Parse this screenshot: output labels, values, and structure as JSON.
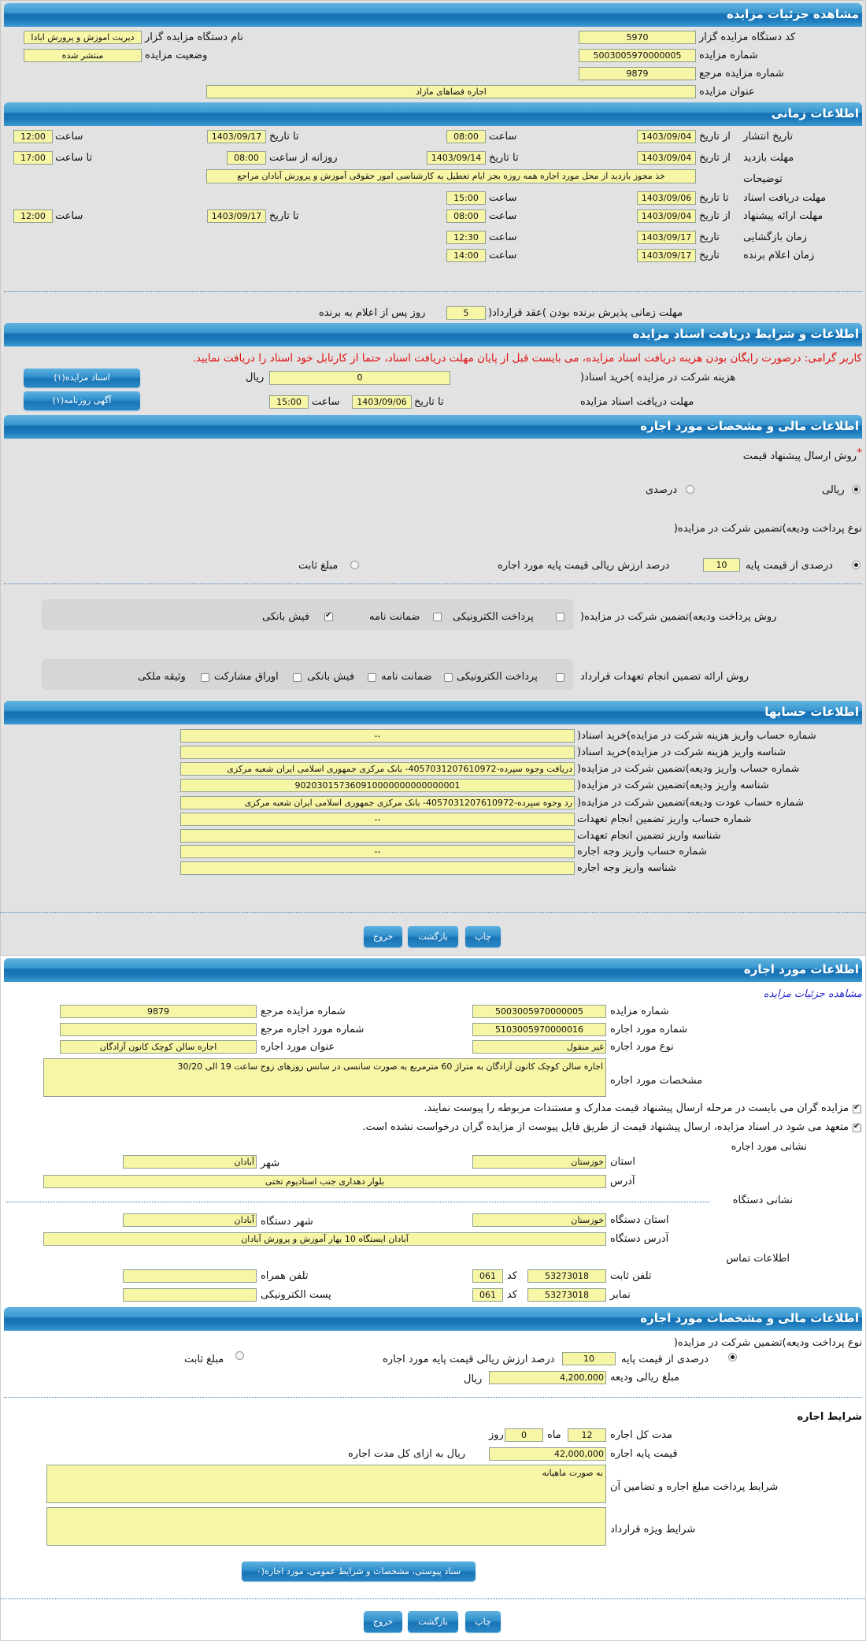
{
  "colors": {
    "header": "#1a78ba",
    "field": "#f7f5a6",
    "notice": "#e01010",
    "link": "#2a2ad0",
    "background": "#e2e2e2"
  },
  "page_title": "مشاهده جزئیات مزایده",
  "auction": {
    "org_code_label": "کد دستگاه مزایده گزار",
    "org_code": "5970",
    "org_name_label": "نام دستگاه مزایده گزار",
    "org_name": "دیریت اموزش و پرورش ابادا",
    "number_label": "شماره مزایده",
    "number": "5003005970000005",
    "status_label": "وضعیت مزایده",
    "status": "منتشر شده",
    "ref_label": "شماره مزایده مرجع",
    "ref": "9879",
    "title_label": "عنوان مزایده",
    "title": "اجاره فضاهای مازاد"
  },
  "timing": {
    "title": "اطلاعات زمانی",
    "from_date": "از تاریخ",
    "to_date": "تا تاریخ",
    "time": "ساعت",
    "to_time": "تا ساعت",
    "daily_from": "روزانه از ساعت",
    "date": "تاریخ",
    "publish": {
      "label": "تاریخ انتشار",
      "from_date": "1403/09/04",
      "from_time": "08:00",
      "to_date": "1403/09/17",
      "to_time": "12:00"
    },
    "visit": {
      "label": "مهلت بازدید",
      "from_date": "1403/09/04",
      "to_date": "1403/09/14",
      "from_time": "08:00",
      "to_time": "17:00"
    },
    "notes_label": "توضیحات",
    "notes": "خذ مجوز بازدید از محل مورد اجاره همه روزه بجز ایام تعطیل به کارشناسی امور حقوقی آموزش و پرورش آبادان مراجع",
    "docs": {
      "label": "مهلت دریافت اسناد",
      "to_date": "1403/09/06",
      "time": "15:00"
    },
    "offer": {
      "label": "مهلت ارائه پیشنهاد",
      "from_date": "1403/09/04",
      "from_time": "08:00",
      "to_date": "1403/09/17",
      "to_time": "12:00"
    },
    "opening": {
      "label": "زمان بازگشایی",
      "date": "1403/09/17",
      "time": "12:30"
    },
    "winner": {
      "label": "زمان اعلام برنده",
      "date": "1403/09/17",
      "time": "14:00"
    },
    "acceptance_label": "مهلت زمانی پذیرش برنده بودن )عقد قرارداد(",
    "acceptance_days": "5",
    "acceptance_suffix": "روز پس از اعلام به برنده"
  },
  "documents": {
    "title": "اطلاعات و شرایط دریافت اسناد مزایده",
    "notice": "کاربر گرامی: درصورت رایگان بودن هزینه دریافت اسناد مزایده، می بایست قبل از پایان مهلت دریافت اسناد، حتما از کارتابل خود اسناد را دریافت نمایید.",
    "fee_label": "هزینه شرکت در مزایده )خرید اسناد(",
    "fee": "0",
    "currency": "ریال",
    "deadline_label": "مهلت دریافت اسناد مزایده",
    "to_date_label": "تا تاریخ",
    "deadline_date": "1403/09/06",
    "time_label": "ساعت",
    "deadline_time": "15:00",
    "docs_button": "اسناد مزایده(۱)",
    "ad_button": "آگهی روزنامه(۱)"
  },
  "financial": {
    "title": "اطلاعات مالی و مشخصات مورد اجاره",
    "price_method_star": "*",
    "price_method_label": "روش ارسال پیشنهاد قیمت",
    "rial_label": "ریالی",
    "rial_selected": true,
    "percent_label": "درصدی",
    "percent_selected": false,
    "deposit_type_label": "نوع پرداخت ودیعه)تضمین شرکت در مزایده(",
    "deposit_percent_label": "درصدی از قیمت پایه",
    "deposit_percent_selected": true,
    "deposit_percent": "10",
    "deposit_percent_suffix": "درصد ارزش ریالی قیمت پایه مورد اجاره",
    "fixed_label": "مبلغ ثابت",
    "fixed_selected": false,
    "deposit_method_label": "روش پرداخت ودیعه)تضمین شرکت در مزایده(",
    "deposit_methods": [
      {
        "label": "پرداخت الکترونیکی",
        "checked": false
      },
      {
        "label": "ضمانت نامه",
        "checked": false
      },
      {
        "label": "فیش بانکی",
        "checked": true
      }
    ],
    "guarantee_method_label": "روش ارائه تضمین انجام تعهدات قرارداد",
    "guarantee_methods": [
      {
        "label": "پرداخت الکترونیکی",
        "checked": false
      },
      {
        "label": "ضمانت نامه",
        "checked": false
      },
      {
        "label": "فیش بانکی",
        "checked": false
      },
      {
        "label": "اوراق مشارکت",
        "checked": false
      },
      {
        "label": "وثیقه ملکی",
        "checked": false
      }
    ]
  },
  "accounts": {
    "title": "اطلاعات حسابها",
    "rows": [
      {
        "label": "شماره حساب واریز هزینه شرکت در مزایده)خرید اسناد(",
        "value": "--"
      },
      {
        "label": "شناسه واریز هزینه شرکت در مزایده)خرید اسناد(",
        "value": ""
      },
      {
        "label": "شماره حساب واریز ودیعه)تضمین شرکت در مزایده(",
        "value": "دریافت وجوه سپرده-4057031207610972- بانک مرکزی جمهوری اسلامی ایران شعبه مرکزی"
      },
      {
        "label": "شناسه واریز ودیعه)تضمین شرکت در مزایده(",
        "value": "902030157360910000000000000001"
      },
      {
        "label": "شماره حساب عودت ودیعه)تضمین شرکت در مزایده(",
        "value": "رد وجوه سپرده-4057031207610972- بانک مرکزی جمهوری اسلامی ایران شعبه مرکزی"
      },
      {
        "label": "شماره حساب واریز تضمین انجام تعهدات",
        "value": "--"
      },
      {
        "label": "شناسه واریز تضمین انجام تعهدات",
        "value": ""
      },
      {
        "label": "شماره حساب واریز وجه اجاره",
        "value": "--"
      },
      {
        "label": "شناسه واریز وجه اجاره",
        "value": ""
      }
    ]
  },
  "actions": {
    "print": "چاپ",
    "back": "بازگشت",
    "exit": "خروج"
  },
  "lease": {
    "title": "اطلاعات مورد اجاره",
    "details_link": "مشاهده جزئیات مزایده",
    "auction_no_label": "شماره مزایده",
    "auction_no": "5003005970000005",
    "ref_auction_label": "شماره مزایده مرجع",
    "ref_auction": "9879",
    "item_no_label": "شماره مورد اجاره",
    "item_no": "5103005970000016",
    "ref_item_label": "شماره مورد اجاره مرجع",
    "ref_item": "",
    "type_label": "نوع مورد اجاره",
    "type": "غیر منقول",
    "item_title_label": "عنوان مورد اجاره",
    "item_title": "اجاره سالن کوچک کانون آزادگان",
    "specs_label": "مشخصات مورد اجاره",
    "specs": "اجاره سالن کوچک کانون آزادگان به متراژ 60 مترمربع به صورت سانسی در سانس روزهای زوج ساعت 19 الی 30/20",
    "agreements": [
      {
        "label": "مزایده گران می بایست در مرحله ارسال پیشنهاد قیمت مدارک و مستندات مربوطه را پیوست نمایند.",
        "checked": true
      },
      {
        "label": "متعهد می شود در اسناد مزایده، ارسال پیشنهاد قیمت از طریق فایل پیوست از مزایده گران درخواست نشده است.",
        "checked": true
      }
    ],
    "address_title": "نشانی مورد اجاره",
    "province_label": "استان",
    "province": "خوزستان",
    "city_label": "شهر",
    "city": "آبادان",
    "address_label": "آدرس",
    "address": "بلوار دهداری جنب استادیوم تختی",
    "org_address_title": "نشانی دستگاه",
    "org_province_label": "استان دستگاه",
    "org_province": "خوزستان",
    "org_city_label": "شهر دستگاه",
    "org_city": "آبادان",
    "org_address_label": "آدرس دستگاه",
    "org_address": "آبادان ایستگاه 10 بهار آموزش و پرورش آبادان",
    "contact_title": "اطلاعات تماس",
    "phone_label": "تلفن ثابت",
    "phone": "53273018",
    "code_label": "کد",
    "phone_code": "061",
    "mobile_label": "تلفن همراه",
    "mobile": "",
    "fax_label": "نمابر",
    "fax": "53273018",
    "fax_code": "061",
    "email_label": "پست الکترونیکی",
    "email": ""
  },
  "lease_financial": {
    "title": "اطلاعات مالی و مشخصات مورد اجاره",
    "deposit_type_label": "نوع پرداخت ودیعه)تضمین شرکت در مزایده(",
    "percent_label": "درصدی از قیمت پایه",
    "percent_selected": true,
    "percent": "10",
    "percent_suffix": "درصد ارزش ریالی قیمت پایه مورد اجاره",
    "fixed_label": "مبلغ ثابت",
    "fixed_selected": false,
    "deposit_amount_label": "مبلغ ریالی ودیعه",
    "deposit_amount": "4,200,000",
    "currency": "ریال",
    "terms_title": "شرایط اجاره",
    "duration_label": "مدت کل اجاره",
    "months": "12",
    "months_label": "ماه",
    "days": "0",
    "days_label": "روز",
    "base_price_label": "قیمت پایه اجاره",
    "base_price": "42,000,000",
    "base_price_suffix": "ریال به ازای کل مدت اجاره",
    "payment_terms_label": "شرایط پرداخت مبلغ اجاره و تضامین آن",
    "payment_terms": "به صورت ماهیانه",
    "special_terms_label": "شرایط ویژه قرارداد",
    "special_terms": "",
    "attachments_button": "سناد پیوستی، مشخصات و شرایط عمومی، مورد اجاره(۰"
  }
}
